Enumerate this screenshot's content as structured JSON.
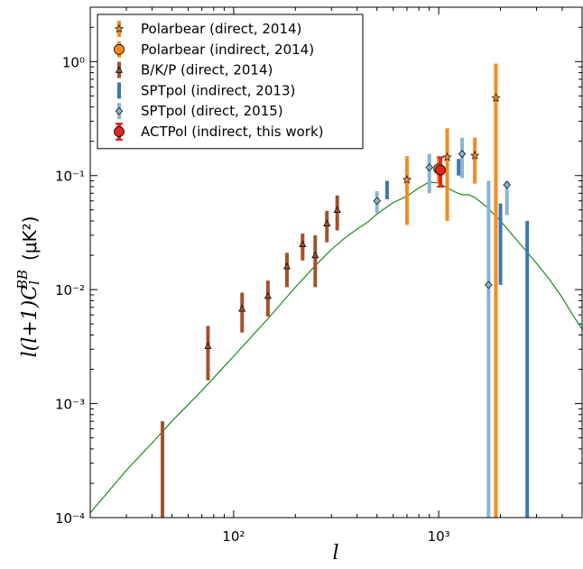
{
  "chart_data": {
    "type": "scatter",
    "title": "",
    "xlabel": "l",
    "ylabel_parts": {
      "main": "l(l+1)C",
      "sub": "l",
      "sup": "BB",
      "unit": "(μK²)"
    },
    "xscale": "log",
    "yscale": "log",
    "xlim": [
      20,
      5000
    ],
    "ylim": [
      0.0001,
      3
    ],
    "legend_position": "top-left",
    "x_ticks": [
      {
        "value": 100,
        "label": "10²"
      },
      {
        "value": 1000,
        "label": "10³"
      }
    ],
    "y_ticks": [
      {
        "value": 0.0001,
        "label": "10⁻⁴"
      },
      {
        "value": 0.001,
        "label": "10⁻³"
      },
      {
        "value": 0.01,
        "label": "10⁻²"
      },
      {
        "value": 0.1,
        "label": "10⁻¹"
      },
      {
        "value": 1,
        "label": "10⁰"
      }
    ],
    "model_curve": {
      "color": "#1a8a1a",
      "x": [
        20,
        30,
        40,
        50,
        70,
        100,
        150,
        200,
        250,
        300,
        350,
        400,
        450,
        500,
        550,
        600,
        700,
        800,
        900,
        1000,
        1100,
        1200,
        1300,
        1400,
        1500,
        1700,
        2000,
        2500,
        3000,
        3500,
        4000,
        4500,
        5000
      ],
      "y": [
        0.00011,
        0.00026,
        0.00045,
        0.0007,
        0.0013,
        0.0026,
        0.0058,
        0.0105,
        0.0162,
        0.0225,
        0.0285,
        0.034,
        0.039,
        0.046,
        0.052,
        0.058,
        0.066,
        0.078,
        0.088,
        0.086,
        0.078,
        0.072,
        0.068,
        0.068,
        0.064,
        0.054,
        0.04,
        0.025,
        0.017,
        0.012,
        0.0085,
        0.006,
        0.0045
      ]
    },
    "series": [
      {
        "name": "Polarbear (direct, 2014)",
        "color": "#f58a1f",
        "marker": "star",
        "points": [
          {
            "x": 700,
            "y": 0.092,
            "lo": 0.037,
            "hi": 0.148
          },
          {
            "x": 1100,
            "y": 0.145,
            "lo": 0.04,
            "hi": 0.26
          },
          {
            "x": 1500,
            "y": 0.15,
            "lo": 0.085,
            "hi": 0.215
          },
          {
            "x": 1900,
            "y": 0.48,
            "lo": 8e-05,
            "hi": 0.96
          }
        ]
      },
      {
        "name": "Polarbear (indirect, 2014)",
        "color": "#f58a1f",
        "marker": "circle",
        "points": [
          {
            "x": 1000,
            "y": 0.115,
            "lo": 0.085,
            "hi": 0.145
          }
        ]
      },
      {
        "name": "B/K/P (direct, 2014)",
        "color": "#a0522d",
        "marker": "triangle",
        "points": [
          {
            "x": 45,
            "y": 8e-05,
            "lo": 8e-05,
            "hi": 0.0007
          },
          {
            "x": 75,
            "y": 0.0032,
            "lo": 0.0016,
            "hi": 0.0048
          },
          {
            "x": 110,
            "y": 0.0068,
            "lo": 0.0042,
            "hi": 0.0094
          },
          {
            "x": 147,
            "y": 0.0088,
            "lo": 0.0058,
            "hi": 0.012
          },
          {
            "x": 182,
            "y": 0.016,
            "lo": 0.0105,
            "hi": 0.021
          },
          {
            "x": 217,
            "y": 0.025,
            "lo": 0.018,
            "hi": 0.031
          },
          {
            "x": 250,
            "y": 0.02,
            "lo": 0.0105,
            "hi": 0.03
          },
          {
            "x": 285,
            "y": 0.038,
            "lo": 0.026,
            "hi": 0.049
          },
          {
            "x": 320,
            "y": 0.05,
            "lo": 0.033,
            "hi": 0.067
          }
        ]
      },
      {
        "name": "SPTpol (indirect, 2013)",
        "color": "#3a78b0",
        "marker": "none",
        "points": [
          {
            "x": 560,
            "y": 0.075,
            "lo": 0.062,
            "hi": 0.09
          },
          {
            "x": 1250,
            "y": 0.12,
            "lo": 0.1,
            "hi": 0.14
          },
          {
            "x": 2000,
            "y": 0.04,
            "lo": 0.011,
            "hi": 0.057
          },
          {
            "x": 2700,
            "y": 0.02,
            "lo": 8e-05,
            "hi": 0.04
          }
        ]
      },
      {
        "name": "SPTpol (direct, 2015)",
        "color": "#8cb3d1",
        "marker": "diamond",
        "points": [
          {
            "x": 500,
            "y": 0.06,
            "lo": 0.047,
            "hi": 0.073
          },
          {
            "x": 900,
            "y": 0.118,
            "lo": 0.07,
            "hi": 0.155
          },
          {
            "x": 1300,
            "y": 0.155,
            "lo": 0.095,
            "hi": 0.215
          },
          {
            "x": 1750,
            "y": 0.011,
            "lo": 8e-05,
            "hi": 0.09
          },
          {
            "x": 2150,
            "y": 0.083,
            "lo": 0.045,
            "hi": 0.09
          }
        ]
      },
      {
        "name": "ACTPol (indirect, this work)",
        "color": "#e0261f",
        "marker": "circle",
        "points": [
          {
            "x": 1020,
            "y": 0.112,
            "lo": 0.08,
            "hi": 0.145
          }
        ]
      }
    ]
  }
}
